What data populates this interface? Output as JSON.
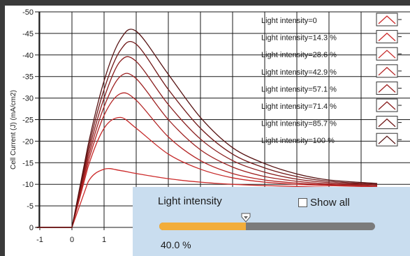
{
  "chart_data": {
    "type": "line",
    "xlabel": "",
    "ylabel": "Cell Current (J) (mA/cm2)",
    "xlim": [
      -1.1,
      9.5
    ],
    "ylim": [
      0,
      -50
    ],
    "x_ticks": [
      "-1",
      "0",
      "1"
    ],
    "y_ticks": [
      "-50",
      "-45",
      "-40",
      "-35",
      "-30",
      "-25",
      "-20",
      "-15",
      "-10",
      "-5",
      "0"
    ],
    "grid": true,
    "legend_position": "top-right",
    "series": [
      {
        "name": "Light intensity=0",
        "color": "#cc2a2a",
        "values": []
      },
      {
        "name": "Light intensity=14.3 %",
        "color": "#cc2a2a",
        "x": [
          -1.1,
          0,
          0.5,
          1,
          1.5,
          2,
          3,
          4,
          5,
          6,
          7,
          8,
          9.5
        ],
        "values": [
          0,
          0,
          -10.5,
          -13.5,
          -13.2,
          -12.5,
          -11.3,
          -10.5,
          -10.0,
          -9.7,
          -9.5,
          -9.3,
          -9.1
        ]
      },
      {
        "name": "Light intensity=28.6 %",
        "color": "#c62828",
        "x": [
          -1.1,
          0,
          0.5,
          1,
          1.5,
          2,
          3,
          4,
          5,
          6,
          7,
          8,
          9.5
        ],
        "values": [
          0,
          0,
          -14,
          -23,
          -25.5,
          -23,
          -17,
          -13.5,
          -11.5,
          -10.5,
          -10.0,
          -9.7,
          -9.4
        ]
      },
      {
        "name": "Light intensity=42.9 %",
        "color": "#b32424",
        "x": [
          -1.1,
          0,
          0.5,
          1,
          1.5,
          2,
          3,
          4,
          5,
          6,
          7,
          8,
          9.5
        ],
        "values": [
          0,
          0,
          -15,
          -26,
          -31,
          -29.5,
          -21,
          -15.5,
          -12.5,
          -11.0,
          -10.3,
          -9.9,
          -9.6
        ]
      },
      {
        "name": "Light intensity=57.1 %",
        "color": "#9e2020",
        "x": [
          -1.1,
          0,
          0.5,
          1,
          1.5,
          2,
          3,
          4,
          5,
          6,
          7,
          8,
          9.5
        ],
        "values": [
          0,
          0,
          -16,
          -28,
          -35,
          -34.5,
          -25,
          -18,
          -14,
          -11.8,
          -10.7,
          -10.1,
          -9.7
        ]
      },
      {
        "name": "Light intensity=71.4 %",
        "color": "#891c1c",
        "x": [
          -1.1,
          0,
          0.5,
          1,
          1.5,
          2,
          3,
          4,
          5,
          6,
          7,
          8,
          9.5
        ],
        "values": [
          0,
          0,
          -17,
          -30,
          -38.5,
          -38.5,
          -28.5,
          -20.5,
          -15.5,
          -12.8,
          -11.2,
          -10.4,
          -9.9
        ]
      },
      {
        "name": "Light intensity=85.7 %",
        "color": "#701818",
        "x": [
          -1.1,
          0,
          0.5,
          1,
          1.5,
          2,
          3,
          4,
          5,
          6,
          7,
          8,
          9.5
        ],
        "values": [
          0,
          0,
          -18,
          -32,
          -41,
          -42.5,
          -32,
          -23,
          -17,
          -13.8,
          -11.8,
          -10.7,
          -10.0
        ]
      },
      {
        "name": "Light intensity=100 %",
        "color": "#561212",
        "x": [
          -1.1,
          0,
          0.5,
          1,
          1.5,
          2,
          3,
          4,
          5,
          6,
          7,
          8,
          9.5
        ],
        "values": [
          0,
          0,
          -19,
          -34,
          -43.5,
          -45.5,
          -35.5,
          -25.5,
          -18.5,
          -14.8,
          -12.4,
          -11.0,
          -10.2
        ]
      }
    ]
  },
  "legend_icon": "triangle-waveform-icon",
  "slider_panel": {
    "title": "Light intensity",
    "show_all_label": "Show all",
    "show_all_checked": false,
    "value_text": "40.0 %",
    "value_fraction": 0.4,
    "track_color": "#7b7b7b",
    "fill_color": "#f2ad3b"
  }
}
